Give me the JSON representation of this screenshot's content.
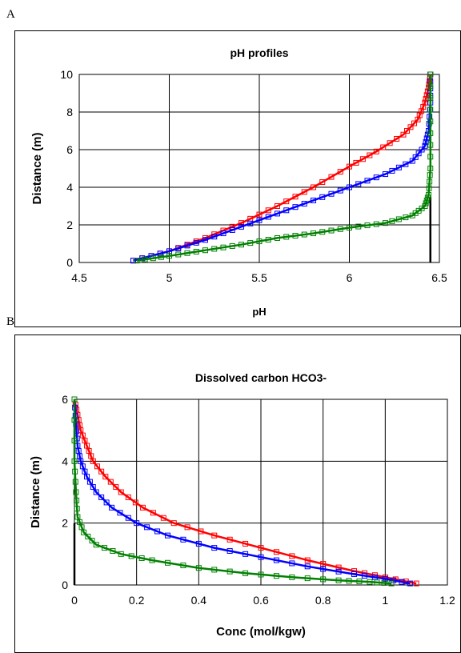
{
  "panels": {
    "a": {
      "letter": "A"
    },
    "b": {
      "letter": "B"
    }
  },
  "colors": {
    "series1": "#ff0000",
    "series2": "#0000ff",
    "series3": "#008000",
    "grid": "#000000",
    "vline": "#000000"
  },
  "chart_data": [
    {
      "type": "line",
      "title": "pH profiles",
      "xlabel": "pH",
      "ylabel": "Distance (m)",
      "xlim": [
        4.5,
        6.5
      ],
      "ylim": [
        0,
        10
      ],
      "xticks": [
        4.5,
        5,
        5.5,
        6,
        6.5
      ],
      "yticks": [
        0,
        2,
        4,
        6,
        8,
        10
      ],
      "xtick_labels": [
        "4.5",
        "5",
        "5.5",
        "6",
        "6.5"
      ],
      "ytick_labels": [
        "0",
        "2",
        "4",
        "6",
        "8",
        "10"
      ],
      "grid": true,
      "legend": "none",
      "markers": "square",
      "series": [
        {
          "color": "#ff0000",
          "points": [
            [
              4.8,
              0.1
            ],
            [
              5.0,
              0.6
            ],
            [
              5.2,
              1.3
            ],
            [
              5.4,
              2.1
            ],
            [
              5.6,
              3.0
            ],
            [
              5.8,
              4.0
            ],
            [
              6.0,
              5.1
            ],
            [
              6.15,
              5.9
            ],
            [
              6.3,
              6.8
            ],
            [
              6.38,
              7.6
            ],
            [
              6.42,
              8.5
            ],
            [
              6.44,
              9.3
            ],
            [
              6.45,
              10.0
            ]
          ]
        },
        {
          "color": "#0000ff",
          "points": [
            [
              4.8,
              0.1
            ],
            [
              5.0,
              0.6
            ],
            [
              5.2,
              1.2
            ],
            [
              5.4,
              1.9
            ],
            [
              5.6,
              2.6
            ],
            [
              5.8,
              3.3
            ],
            [
              6.0,
              4.0
            ],
            [
              6.2,
              4.7
            ],
            [
              6.35,
              5.4
            ],
            [
              6.42,
              6.2
            ],
            [
              6.44,
              7.0
            ],
            [
              6.45,
              8.5
            ],
            [
              6.45,
              10.0
            ]
          ]
        },
        {
          "color": "#008000",
          "points": [
            [
              4.82,
              0.1
            ],
            [
              5.0,
              0.35
            ],
            [
              5.2,
              0.65
            ],
            [
              5.4,
              0.95
            ],
            [
              5.6,
              1.3
            ],
            [
              5.8,
              1.55
            ],
            [
              6.0,
              1.85
            ],
            [
              6.2,
              2.1
            ],
            [
              6.35,
              2.5
            ],
            [
              6.42,
              3.0
            ],
            [
              6.44,
              3.6
            ],
            [
              6.45,
              5.0
            ],
            [
              6.45,
              7.5
            ],
            [
              6.45,
              10.0
            ]
          ]
        }
      ],
      "vline": {
        "x": 6.45,
        "y": [
          0,
          3.5
        ]
      }
    },
    {
      "type": "line",
      "title": "Dissolved carbon HCO3-",
      "xlabel": "Conc (mol/kgw)",
      "ylabel": "Distance (m)",
      "xlim": [
        0,
        1.2
      ],
      "ylim": [
        0,
        6
      ],
      "xticks": [
        0,
        0.2,
        0.4,
        0.6,
        0.8,
        1,
        1.2
      ],
      "yticks": [
        0,
        2,
        4,
        6
      ],
      "xtick_labels": [
        "0",
        "0.2",
        "0.4",
        "0.6",
        "0.8",
        "1",
        "1.2"
      ],
      "ytick_labels": [
        "0",
        "2",
        "4",
        "6"
      ],
      "grid": true,
      "legend": "none",
      "markers": "square",
      "series": [
        {
          "color": "#ff0000",
          "points": [
            [
              0.0,
              6.0
            ],
            [
              0.01,
              5.5
            ],
            [
              0.02,
              5.0
            ],
            [
              0.04,
              4.5
            ],
            [
              0.06,
              4.0
            ],
            [
              0.1,
              3.5
            ],
            [
              0.15,
              3.0
            ],
            [
              0.22,
              2.5
            ],
            [
              0.32,
              2.0
            ],
            [
              0.45,
              1.6
            ],
            [
              0.6,
              1.2
            ],
            [
              0.75,
              0.8
            ],
            [
              0.9,
              0.45
            ],
            [
              1.0,
              0.25
            ],
            [
              1.1,
              0.05
            ]
          ]
        },
        {
          "color": "#0000ff",
          "points": [
            [
              0.0,
              6.0
            ],
            [
              0.005,
              5.2
            ],
            [
              0.01,
              4.5
            ],
            [
              0.02,
              4.0
            ],
            [
              0.04,
              3.5
            ],
            [
              0.07,
              3.0
            ],
            [
              0.12,
              2.5
            ],
            [
              0.2,
              2.0
            ],
            [
              0.3,
              1.6
            ],
            [
              0.45,
              1.2
            ],
            [
              0.6,
              0.9
            ],
            [
              0.75,
              0.6
            ],
            [
              0.9,
              0.35
            ],
            [
              1.0,
              0.2
            ],
            [
              1.08,
              0.05
            ]
          ]
        },
        {
          "color": "#008000",
          "points": [
            [
              0.0,
              6.0
            ],
            [
              0.0,
              4.0
            ],
            [
              0.005,
              3.0
            ],
            [
              0.01,
              2.2
            ],
            [
              0.03,
              1.7
            ],
            [
              0.07,
              1.3
            ],
            [
              0.15,
              1.0
            ],
            [
              0.25,
              0.8
            ],
            [
              0.4,
              0.55
            ],
            [
              0.55,
              0.38
            ],
            [
              0.7,
              0.25
            ],
            [
              0.85,
              0.15
            ],
            [
              0.95,
              0.1
            ],
            [
              1.02,
              0.05
            ]
          ]
        }
      ],
      "vline": {
        "x": 0,
        "y": [
          0,
          2.0
        ]
      }
    }
  ]
}
